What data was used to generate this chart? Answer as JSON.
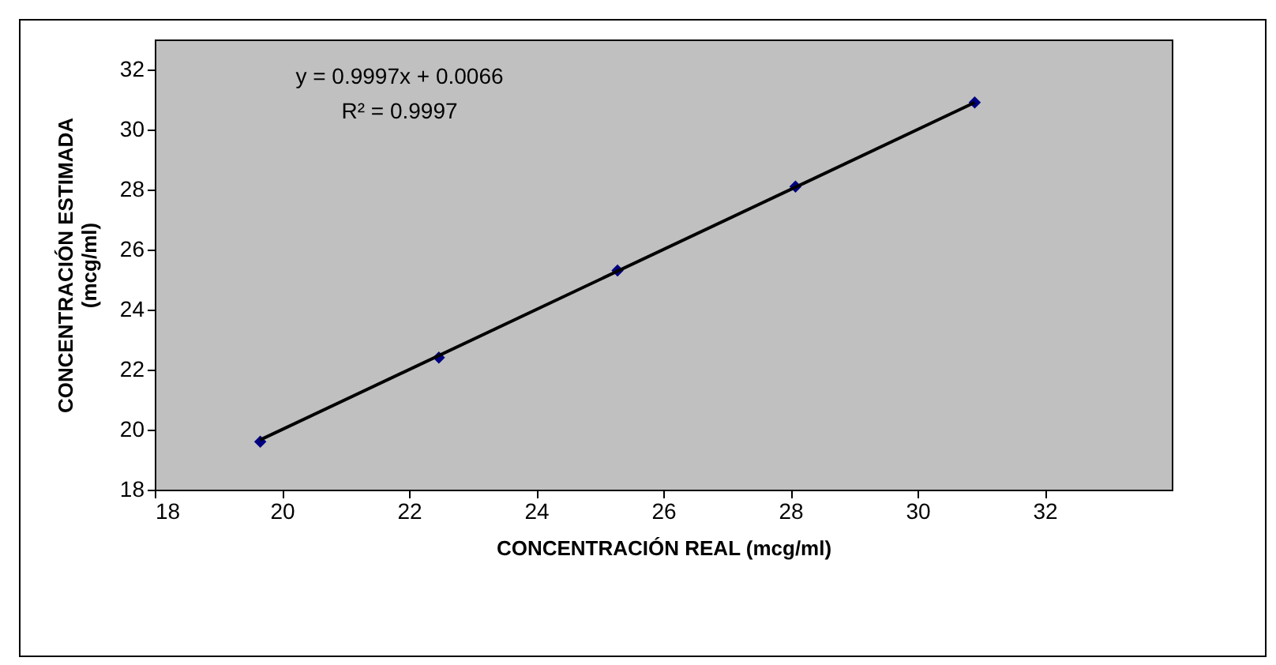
{
  "chart_data": {
    "type": "scatter",
    "xlabel": "CONCENTRACIÓN REAL (mcg/ml)",
    "ylabel": [
      "CONCENTRACIÓN ESTIMADA",
      "(mcg/ml)"
    ],
    "x": [
      19.66,
      22.47,
      25.28,
      28.08,
      30.9
    ],
    "series": [
      {
        "color": "#000080",
        "marker": "diamond",
        "values": [
          19.6,
          22.4,
          25.3,
          28.1,
          30.9
        ]
      },
      {
        "type": "line",
        "color": "#000000",
        "marker": "none",
        "line_style": "solid",
        "x": [
          19.66,
          30.9
        ],
        "values": [
          19.66,
          30.9
        ]
      }
    ],
    "xlim": [
      18,
      34
    ],
    "xticks": [
      18,
      20,
      22,
      24,
      26,
      28,
      30,
      32
    ],
    "ylim": [
      18,
      33
    ],
    "yticks": [
      18,
      20,
      22,
      24,
      26,
      28,
      30,
      32
    ],
    "grid": false,
    "annotations": [
      "y = 0.9997x + 0.0066",
      "R² = 0.9997"
    ]
  }
}
